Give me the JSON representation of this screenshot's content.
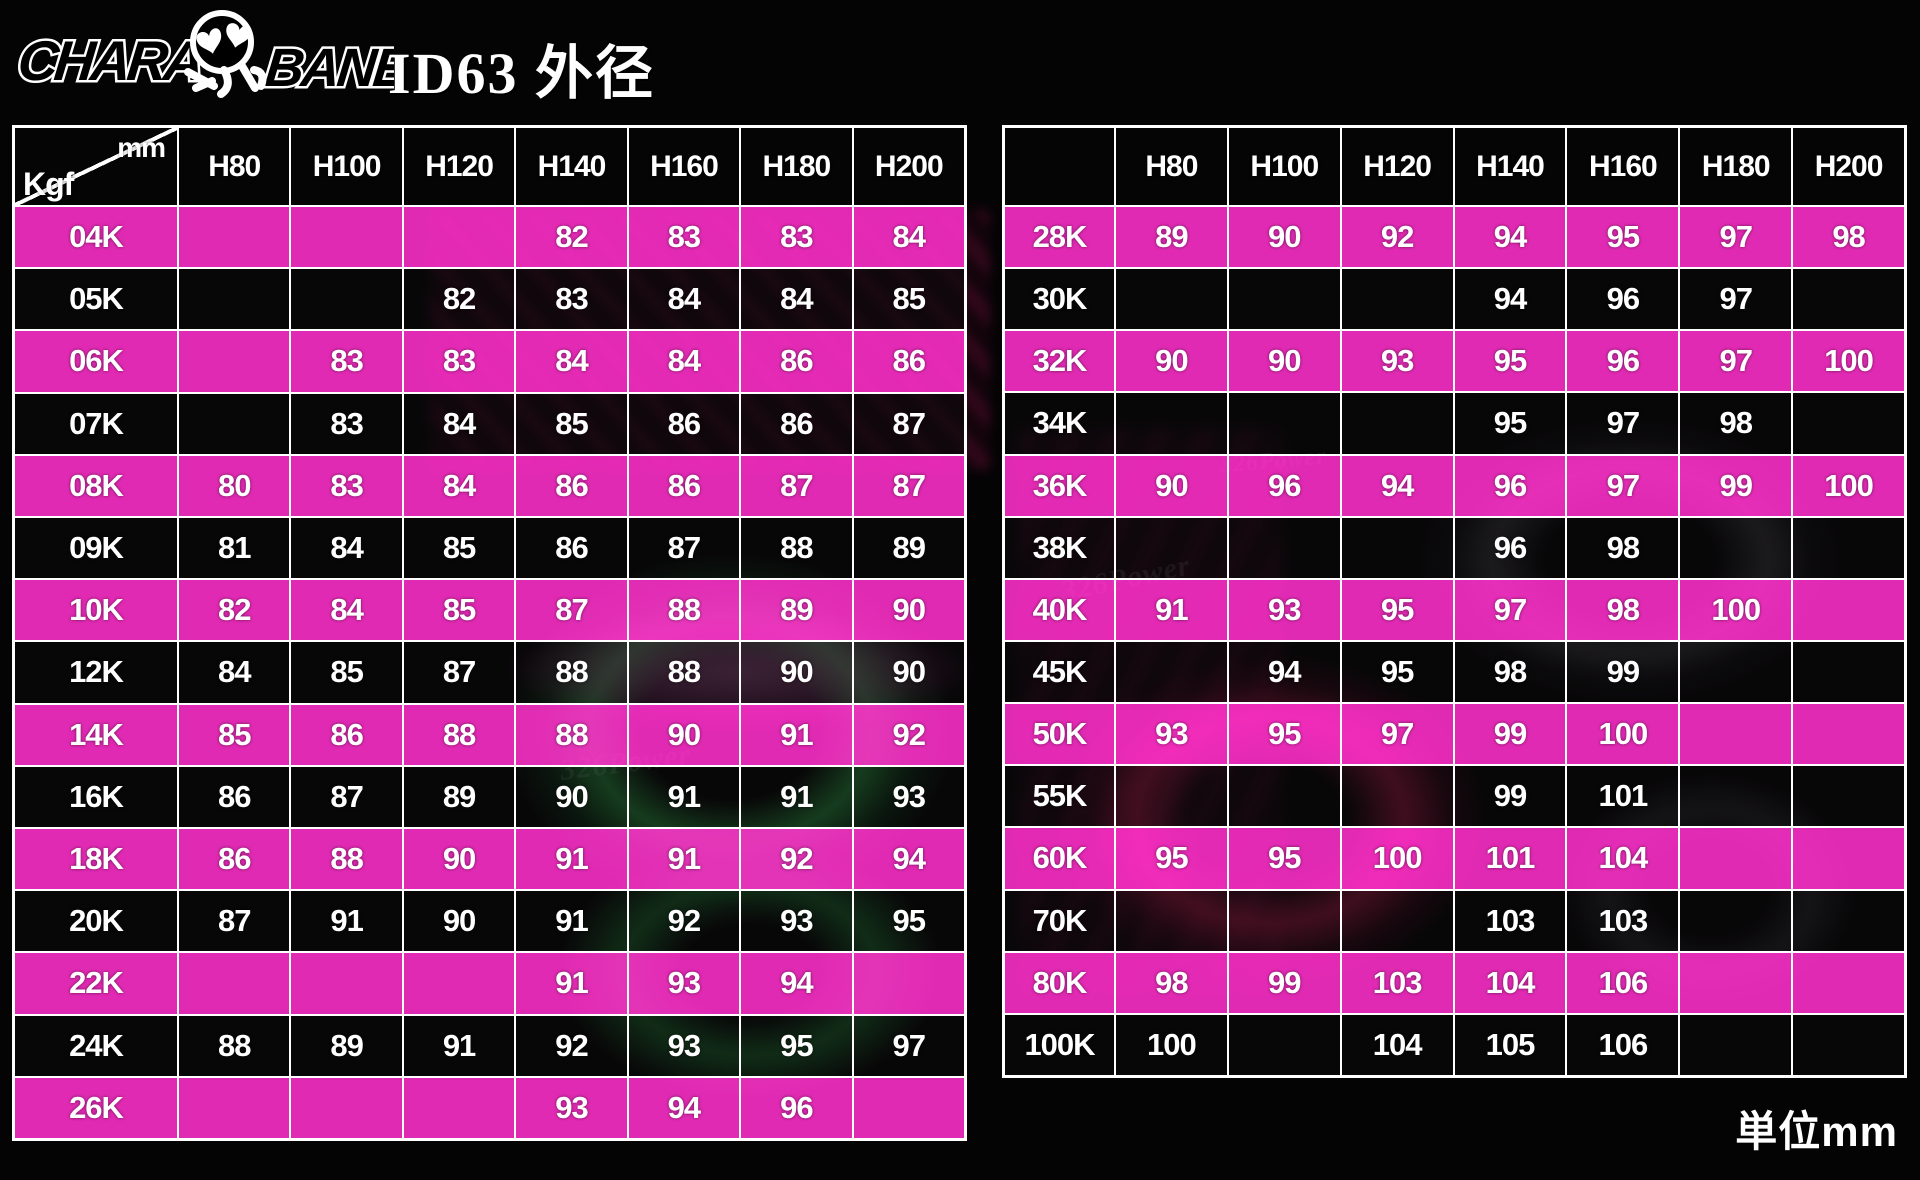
{
  "logo": {
    "left_text": "CHARA",
    "right_text": "BANE",
    "icon": "skull-with-heart-eyes"
  },
  "title": "ID63 外径",
  "unit_label": "単位mm",
  "watermark": "326Power",
  "colors": {
    "accent_pink": "#f92fc6",
    "row_dark": "#0c0a0c",
    "border": "#ffffff",
    "text": "#ffffff",
    "background": "#050405"
  },
  "chart_data": {
    "type": "table",
    "title": "ID63 外径",
    "unit": "mm",
    "corner_labels": {
      "top": "mm",
      "bottom": "Kgf"
    },
    "columns": [
      "H80",
      "H100",
      "H120",
      "H140",
      "H160",
      "H180",
      "H200"
    ],
    "tables": [
      {
        "name": "left",
        "rows": [
          {
            "label": "04K",
            "values": [
              "",
              "",
              "",
              "82",
              "83",
              "83",
              "84"
            ]
          },
          {
            "label": "05K",
            "values": [
              "",
              "",
              "82",
              "83",
              "84",
              "84",
              "85"
            ]
          },
          {
            "label": "06K",
            "values": [
              "",
              "83",
              "83",
              "84",
              "84",
              "86",
              "86"
            ]
          },
          {
            "label": "07K",
            "values": [
              "",
              "83",
              "84",
              "85",
              "86",
              "86",
              "87"
            ]
          },
          {
            "label": "08K",
            "values": [
              "80",
              "83",
              "84",
              "86",
              "86",
              "87",
              "87"
            ]
          },
          {
            "label": "09K",
            "values": [
              "81",
              "84",
              "85",
              "86",
              "87",
              "88",
              "89"
            ]
          },
          {
            "label": "10K",
            "values": [
              "82",
              "84",
              "85",
              "87",
              "88",
              "89",
              "90"
            ]
          },
          {
            "label": "12K",
            "values": [
              "84",
              "85",
              "87",
              "88",
              "88",
              "90",
              "90"
            ]
          },
          {
            "label": "14K",
            "values": [
              "85",
              "86",
              "88",
              "88",
              "90",
              "91",
              "92"
            ]
          },
          {
            "label": "16K",
            "values": [
              "86",
              "87",
              "89",
              "90",
              "91",
              "91",
              "93"
            ]
          },
          {
            "label": "18K",
            "values": [
              "86",
              "88",
              "90",
              "91",
              "91",
              "92",
              "94"
            ]
          },
          {
            "label": "20K",
            "values": [
              "87",
              "91",
              "90",
              "91",
              "92",
              "93",
              "95"
            ]
          },
          {
            "label": "22K",
            "values": [
              "",
              "",
              "",
              "91",
              "93",
              "94",
              ""
            ]
          },
          {
            "label": "24K",
            "values": [
              "88",
              "89",
              "91",
              "92",
              "93",
              "95",
              "97"
            ]
          },
          {
            "label": "26K",
            "values": [
              "",
              "",
              "",
              "93",
              "94",
              "96",
              ""
            ]
          }
        ]
      },
      {
        "name": "right",
        "rows": [
          {
            "label": "28K",
            "values": [
              "89",
              "90",
              "92",
              "94",
              "95",
              "97",
              "98"
            ]
          },
          {
            "label": "30K",
            "values": [
              "",
              "",
              "",
              "94",
              "96",
              "97",
              ""
            ]
          },
          {
            "label": "32K",
            "values": [
              "90",
              "90",
              "93",
              "95",
              "96",
              "97",
              "100"
            ]
          },
          {
            "label": "34K",
            "values": [
              "",
              "",
              "",
              "95",
              "97",
              "98",
              ""
            ]
          },
          {
            "label": "36K",
            "values": [
              "90",
              "96",
              "94",
              "96",
              "97",
              "99",
              "100"
            ]
          },
          {
            "label": "38K",
            "values": [
              "",
              "",
              "",
              "96",
              "98",
              "",
              ""
            ]
          },
          {
            "label": "40K",
            "values": [
              "91",
              "93",
              "95",
              "97",
              "98",
              "100",
              ""
            ]
          },
          {
            "label": "45K",
            "values": [
              "",
              "94",
              "95",
              "98",
              "99",
              "",
              ""
            ]
          },
          {
            "label": "50K",
            "values": [
              "93",
              "95",
              "97",
              "99",
              "100",
              "",
              ""
            ]
          },
          {
            "label": "55K",
            "values": [
              "",
              "",
              "",
              "99",
              "101",
              "",
              ""
            ]
          },
          {
            "label": "60K",
            "values": [
              "95",
              "95",
              "100",
              "101",
              "104",
              "",
              ""
            ]
          },
          {
            "label": "70K",
            "values": [
              "",
              "",
              "",
              "103",
              "103",
              "",
              ""
            ]
          },
          {
            "label": "80K",
            "values": [
              "98",
              "99",
              "103",
              "104",
              "106",
              "",
              ""
            ]
          },
          {
            "label": "100K",
            "values": [
              "100",
              "",
              "104",
              "105",
              "106",
              "",
              ""
            ]
          }
        ]
      }
    ]
  }
}
